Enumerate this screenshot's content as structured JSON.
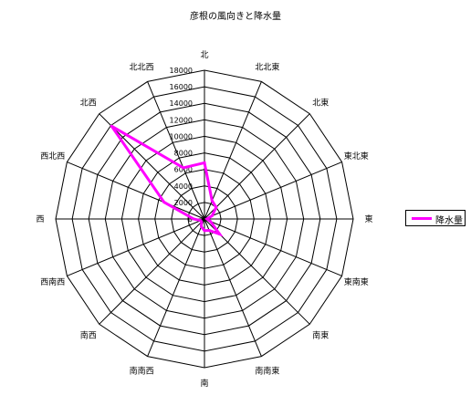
{
  "chart_data": {
    "type": "radar",
    "title": "彦根の風向きと降水量",
    "directions": [
      "北",
      "北北東",
      "北東",
      "東北東",
      "東",
      "東南東",
      "南東",
      "南南東",
      "南",
      "南南西",
      "南西",
      "西南西",
      "西",
      "西北西",
      "北西",
      "北北西"
    ],
    "series": [
      {
        "name": "降水量",
        "color": "#ff00ff",
        "values": [
          6800,
          2400,
          2000,
          1000,
          300,
          800,
          2600,
          1500,
          1400,
          1000,
          500,
          500,
          1300,
          5300,
          15900,
          6700
        ]
      }
    ],
    "radial_range": [
      0,
      18000
    ],
    "radial_ticks": [
      0,
      2000,
      4000,
      6000,
      8000,
      10000,
      12000,
      14000,
      16000,
      18000
    ],
    "gridlines": true,
    "legend_position": "right"
  }
}
